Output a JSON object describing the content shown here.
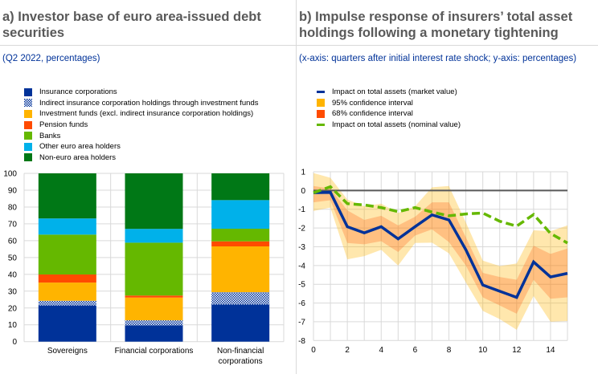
{
  "panel_a": {
    "title": "a) Investor base of euro area-issued debt securities",
    "subtitle": "(Q2 2022, percentages)"
  },
  "panel_b": {
    "title": "b) Impulse response of insurers’ total asset holdings following a monetary tightening",
    "subtitle": "(x-axis: quarters after initial interest rate shock; y-axis: percentages)"
  },
  "chart_data": [
    {
      "type": "bar",
      "stacked": true,
      "title": "a) Investor base of euro area-issued debt securities",
      "subtitle": "(Q2 2022, percentages)",
      "xlabel": "",
      "ylabel": "",
      "ylim": [
        0,
        100
      ],
      "yticks": [
        0,
        10,
        20,
        30,
        40,
        50,
        60,
        70,
        80,
        90,
        100
      ],
      "grid": true,
      "legend_position": "top-left",
      "categories": [
        "Sovereigns",
        "Financial corporations",
        "Non-financial corporations"
      ],
      "category_lines": [
        [
          "Sovereigns"
        ],
        [
          "Financial corporations"
        ],
        [
          "Non-financial",
          "corporations"
        ]
      ],
      "series": [
        {
          "name": "Insurance corporations",
          "color": "#003299",
          "pattern": "solid",
          "values": [
            21.5,
            9.7,
            22.1
          ]
        },
        {
          "name": "Indirect insurance corporation holdings through investment funds",
          "color": "#003299",
          "pattern": "hatched",
          "values": [
            2.8,
            3.0,
            7.3
          ]
        },
        {
          "name": "Investment funds (excl. indirect insurance corporation holdings)",
          "color": "#FFB400",
          "pattern": "solid",
          "values": [
            10.8,
            13.5,
            27.2
          ]
        },
        {
          "name": "Pension funds",
          "color": "#FF4B00",
          "pattern": "solid",
          "values": [
            4.8,
            1.2,
            3.0
          ]
        },
        {
          "name": "Banks",
          "color": "#65B800",
          "pattern": "solid",
          "values": [
            23.7,
            31.4,
            7.5
          ]
        },
        {
          "name": "Other euro area holders",
          "color": "#00B1EA",
          "pattern": "solid",
          "values": [
            9.6,
            8.2,
            17.0
          ]
        },
        {
          "name": "Non-euro area holders",
          "color": "#007816",
          "pattern": "solid",
          "values": [
            26.8,
            33.0,
            15.9
          ]
        }
      ]
    },
    {
      "type": "line",
      "title": "b) Impulse response of insurers’ total asset holdings following a monetary tightening",
      "subtitle": "(x-axis: quarters after initial interest rate shock; y-axis: percentages)",
      "xlabel": "quarters after initial interest rate shock",
      "ylabel": "percentages",
      "xlim": [
        0,
        15
      ],
      "ylim": [
        -8,
        1
      ],
      "xticks": [
        0,
        2,
        4,
        6,
        8,
        10,
        12,
        14
      ],
      "yticks": [
        1,
        0,
        -1,
        -2,
        -3,
        -4,
        -5,
        -6,
        -7,
        -8
      ],
      "grid": true,
      "legend_position": "top-left",
      "x": [
        0,
        1,
        2,
        3,
        4,
        5,
        6,
        7,
        8,
        9,
        10,
        11,
        12,
        13,
        14,
        15
      ],
      "bands": [
        {
          "name": "95% confidence interval",
          "color": "#FFB400",
          "upper": [
            0.93,
            0.68,
            -0.48,
            -0.84,
            -0.7,
            -1.2,
            -0.84,
            0.17,
            0.24,
            -1.7,
            -3.74,
            -4.03,
            -3.89,
            -2.12,
            -2.17,
            -1.86
          ],
          "lower": [
            -1.09,
            -0.91,
            -3.67,
            -3.5,
            -3.16,
            -4.0,
            -2.8,
            -2.78,
            -3.35,
            -4.9,
            -6.42,
            -6.86,
            -7.43,
            -5.63,
            -7.0,
            -6.96
          ]
        },
        {
          "name": "68% confidence interval",
          "color": "#FF4B00",
          "upper": [
            0.24,
            0.1,
            -1.06,
            -1.57,
            -1.35,
            -1.86,
            -1.4,
            -0.63,
            -0.63,
            -2.5,
            -4.39,
            -4.61,
            -4.76,
            -2.94,
            -3.38,
            -3.09
          ],
          "lower": [
            -0.63,
            -0.52,
            -2.8,
            -2.87,
            -2.7,
            -3.28,
            -2.4,
            -2.07,
            -2.75,
            -4.0,
            -5.7,
            -6.13,
            -6.57,
            -4.76,
            -5.77,
            -5.7
          ]
        }
      ],
      "series": [
        {
          "name": "Impact on total assets (market value)",
          "color": "#003299",
          "style": "solid",
          "values": [
            -0.12,
            -0.1,
            -1.93,
            -2.26,
            -1.93,
            -2.58,
            -1.93,
            -1.3,
            -1.57,
            -3.16,
            -5.04,
            -5.37,
            -5.7,
            -3.81,
            -4.61,
            -4.42
          ]
        },
        {
          "name": "Impact on total assets (nominal value)",
          "color": "#65B800",
          "style": "dashed",
          "values": [
            -0.12,
            0.2,
            -0.7,
            -0.77,
            -0.91,
            -1.13,
            -0.91,
            -1.15,
            -1.35,
            -1.25,
            -1.2,
            -1.64,
            -1.9,
            -1.28,
            -2.29,
            -2.8
          ]
        }
      ],
      "legend": [
        {
          "name": "Impact on total assets (market value)",
          "kind": "line",
          "color": "#003299"
        },
        {
          "name": "95% confidence interval",
          "kind": "box",
          "color": "#FFB400"
        },
        {
          "name": "68% confidence interval",
          "kind": "box",
          "color": "#FF4B00"
        },
        {
          "name": "Impact on total assets (nominal value)",
          "kind": "line",
          "color": "#65B800"
        }
      ]
    }
  ]
}
